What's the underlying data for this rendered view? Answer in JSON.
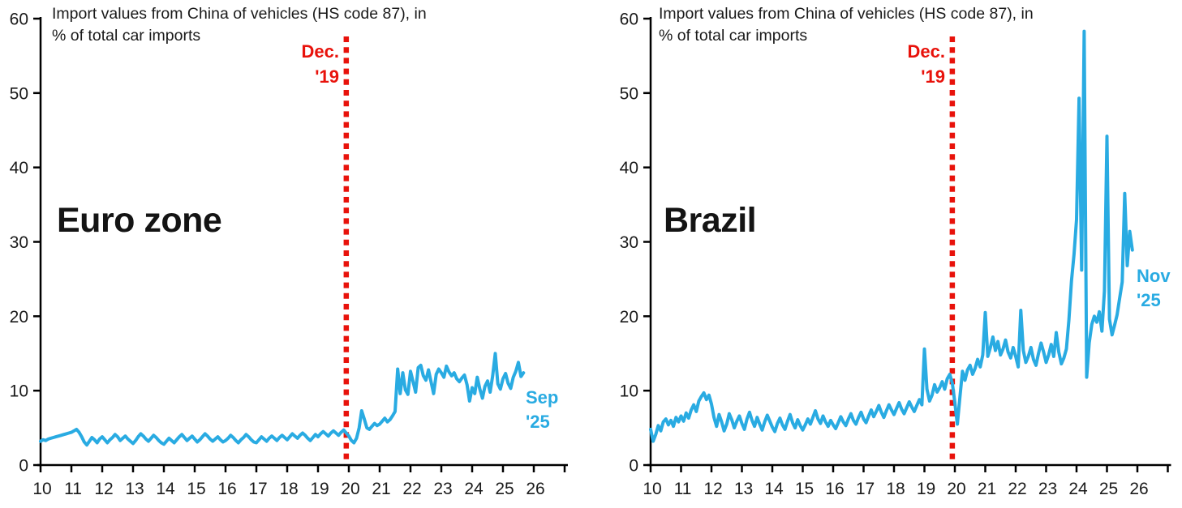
{
  "page": {
    "background": "#ffffff"
  },
  "colors": {
    "line": "#29abe2",
    "event_line": "#e8120b",
    "axis": "#000000",
    "text": "#1a1a1a"
  },
  "chart_data": [
    {
      "type": "line",
      "region_label": "Euro zone",
      "title_line1": "Import values from China of vehicles (HS code 87), in",
      "title_line2": "% of total car imports",
      "x_start": "Jan 2010",
      "x_end": "Sep 2025",
      "x_tick_labels": [
        "10",
        "11",
        "12",
        "13",
        "14",
        "15",
        "16",
        "17",
        "18",
        "19",
        "20",
        "21",
        "22",
        "23",
        "24",
        "25",
        "26"
      ],
      "y_ticks": [
        0,
        10,
        20,
        30,
        40,
        50,
        60
      ],
      "ylim": [
        0,
        60
      ],
      "grid": false,
      "legend": "none",
      "line_color": "#29abe2",
      "event_line": {
        "label_line1": "Dec.",
        "label_line2": "'19",
        "position": "Dec 2019",
        "color": "#e8120b"
      },
      "end_label": {
        "line1": "Sep",
        "line2": "'25",
        "color": "#29abe2"
      },
      "monthly_values": [
        3.2,
        3.4,
        3.3,
        3.5,
        3.6,
        3.7,
        3.8,
        3.9,
        4.0,
        4.1,
        4.2,
        4.3,
        4.4,
        4.6,
        4.8,
        4.4,
        3.8,
        3.1,
        2.7,
        3.2,
        3.7,
        3.4,
        3.0,
        3.5,
        3.8,
        3.4,
        3.0,
        3.4,
        3.7,
        4.1,
        3.8,
        3.3,
        3.6,
        3.9,
        3.5,
        3.2,
        2.9,
        3.3,
        3.8,
        4.2,
        3.9,
        3.5,
        3.2,
        3.6,
        4.0,
        3.7,
        3.3,
        3.0,
        2.8,
        3.2,
        3.6,
        3.3,
        3.0,
        3.4,
        3.8,
        4.1,
        3.7,
        3.3,
        3.6,
        3.9,
        3.5,
        3.1,
        3.4,
        3.8,
        4.2,
        3.9,
        3.5,
        3.2,
        3.5,
        3.8,
        3.4,
        3.1,
        3.3,
        3.6,
        4.0,
        3.7,
        3.3,
        3.0,
        3.4,
        3.7,
        4.1,
        3.8,
        3.4,
        3.1,
        3.0,
        3.4,
        3.8,
        3.5,
        3.2,
        3.6,
        3.9,
        3.6,
        3.3,
        3.7,
        4.0,
        3.7,
        3.4,
        3.8,
        4.2,
        3.9,
        3.6,
        4.0,
        4.3,
        4.0,
        3.6,
        3.3,
        3.7,
        4.1,
        3.8,
        4.2,
        4.5,
        4.2,
        3.9,
        4.3,
        4.6,
        4.3,
        4.0,
        4.4,
        4.7,
        4.3,
        3.9,
        3.3,
        3.0,
        3.6,
        5.0,
        7.3,
        6.2,
        5.0,
        4.8,
        5.2,
        5.6,
        5.3,
        5.5,
        5.9,
        6.3,
        5.8,
        6.1,
        6.6,
        7.2,
        12.9,
        9.6,
        12.4,
        10.1,
        9.5,
        12.6,
        11.2,
        9.8,
        13.1,
        13.4,
        12.0,
        11.4,
        12.8,
        11.2,
        9.6,
        12.2,
        12.9,
        12.4,
        11.8,
        13.3,
        12.5,
        12.0,
        12.4,
        11.6,
        11.2,
        11.7,
        12.1,
        10.8,
        8.6,
        10.4,
        9.6,
        11.8,
        10.2,
        9.0,
        10.6,
        11.3,
        9.8,
        12.0,
        15.0,
        10.9,
        10.2,
        11.6,
        12.3,
        11.0,
        10.3,
        11.8,
        12.6,
        13.8,
        11.9,
        12.4
      ]
    },
    {
      "type": "line",
      "region_label": "Brazil",
      "title_line1": "Import values from China of vehicles (HS code 87), in",
      "title_line2": "% of total car imports",
      "x_start": "Jan 2010",
      "x_end": "Nov 2025",
      "x_tick_labels": [
        "10",
        "11",
        "12",
        "13",
        "14",
        "15",
        "16",
        "17",
        "18",
        "19",
        "20",
        "21",
        "22",
        "23",
        "24",
        "25",
        "26"
      ],
      "y_ticks": [
        0,
        10,
        20,
        30,
        40,
        50,
        60
      ],
      "ylim": [
        0,
        60
      ],
      "grid": false,
      "legend": "none",
      "line_color": "#29abe2",
      "event_line": {
        "label_line1": "Dec.",
        "label_line2": "'19",
        "position": "Dec 2019",
        "color": "#e8120b"
      },
      "end_label": {
        "line1": "Nov",
        "line2": "'25",
        "color": "#29abe2"
      },
      "monthly_values": [
        4.8,
        3.2,
        4.1,
        5.3,
        4.6,
        5.8,
        6.2,
        5.4,
        6.0,
        5.2,
        6.4,
        5.8,
        6.6,
        5.9,
        7.0,
        6.3,
        7.4,
        8.1,
        7.2,
        8.6,
        9.2,
        9.7,
        8.8,
        9.4,
        8.2,
        6.4,
        5.2,
        6.8,
        5.8,
        4.6,
        5.5,
        6.9,
        6.1,
        5.0,
        5.9,
        6.6,
        5.6,
        4.8,
        6.2,
        7.1,
        6.0,
        5.2,
        6.4,
        5.5,
        4.7,
        5.8,
        6.7,
        5.9,
        5.1,
        4.5,
        5.6,
        6.3,
        5.4,
        4.8,
        5.9,
        6.8,
        5.7,
        5.0,
        6.1,
        5.3,
        4.7,
        5.4,
        6.2,
        5.5,
        6.4,
        7.3,
        6.2,
        5.6,
        6.6,
        5.8,
        5.2,
        6.0,
        5.4,
        4.9,
        5.7,
        6.5,
        5.8,
        5.3,
        6.2,
        6.9,
        6.0,
        5.5,
        6.4,
        7.1,
        6.2,
        5.7,
        6.6,
        7.4,
        6.5,
        7.2,
        8.0,
        7.1,
        6.4,
        7.3,
        8.1,
        7.4,
        6.8,
        7.6,
        8.4,
        7.5,
        6.9,
        7.7,
        8.5,
        7.8,
        7.2,
        8.0,
        8.8,
        8.1,
        15.6,
        10.2,
        8.6,
        9.4,
        10.8,
        9.8,
        10.4,
        11.2,
        10.2,
        11.6,
        12.2,
        11.0,
        8.4,
        5.5,
        9.2,
        12.6,
        11.4,
        12.8,
        13.4,
        12.2,
        13.0,
        14.2,
        13.2,
        14.8,
        20.5,
        14.6,
        15.8,
        17.2,
        15.4,
        16.6,
        14.8,
        15.6,
        16.8,
        15.2,
        14.4,
        15.8,
        14.6,
        13.2,
        20.8,
        15.4,
        13.8,
        14.6,
        15.8,
        14.2,
        13.4,
        15.0,
        16.4,
        15.2,
        13.8,
        14.8,
        16.2,
        14.6,
        17.8,
        15.2,
        13.6,
        14.4,
        15.6,
        19.5,
        24.8,
        28.3,
        33.0,
        49.3,
        26.2,
        58.3,
        11.8,
        16.4,
        18.9,
        20.0,
        19.2,
        20.6,
        18.0,
        23.4,
        44.2,
        19.6,
        17.5,
        18.8,
        20.2,
        22.4,
        24.6,
        36.5,
        26.8,
        31.4,
        28.9
      ]
    }
  ]
}
